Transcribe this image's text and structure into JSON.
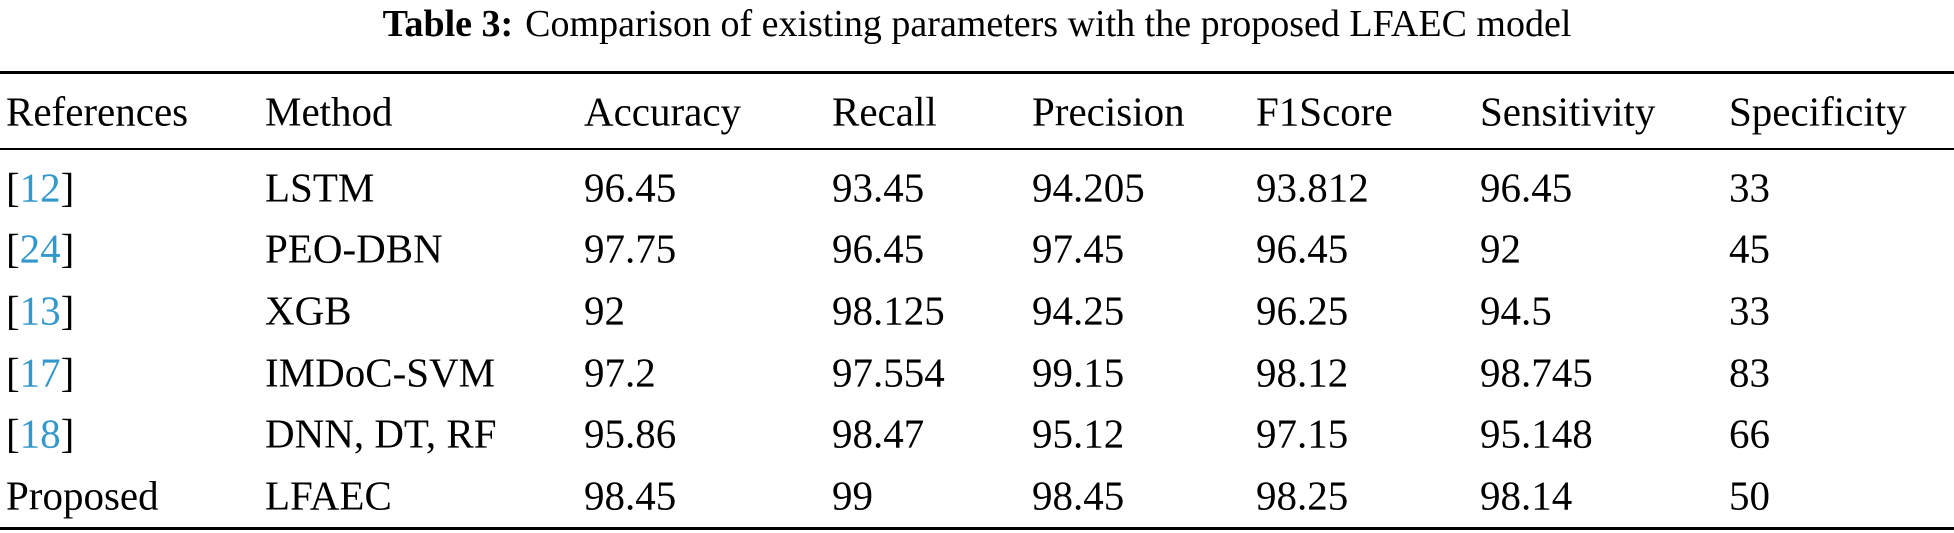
{
  "caption": {
    "label": "Table 3:",
    "text": "Comparison of existing parameters with the proposed LFAEC model"
  },
  "table": {
    "header": [
      "References",
      "Method",
      "Accuracy",
      "Recall",
      "Precision",
      "F1Score",
      "Sensitivity",
      "Specificity"
    ],
    "rows": [
      [
        [
          "[",
          "12",
          "]"
        ],
        "LSTM",
        "96.45",
        "93.45",
        "94.205",
        "93.812",
        "96.45",
        "33"
      ],
      [
        [
          "[",
          "24",
          "]"
        ],
        "PEO-DBN",
        "97.75",
        "96.45",
        "97.45",
        "96.45",
        "92",
        "45"
      ],
      [
        [
          "[",
          "13",
          "]"
        ],
        "XGB",
        "92",
        "98.125",
        "94.25",
        "96.25",
        "94.5",
        "33"
      ],
      [
        [
          "[",
          "17",
          "]"
        ],
        "IMDoC-SVM",
        "97.2",
        "97.554",
        "99.15",
        "98.12",
        "98.745",
        "83"
      ],
      [
        [
          "[",
          "18",
          "]"
        ],
        "DNN, DT, RF",
        "95.86",
        "98.47",
        "95.12",
        "97.15",
        "95.148",
        "66"
      ],
      [
        "Proposed",
        "LFAEC",
        "98.45",
        "99",
        "98.45",
        "98.25",
        "98.14",
        "50"
      ]
    ]
  }
}
